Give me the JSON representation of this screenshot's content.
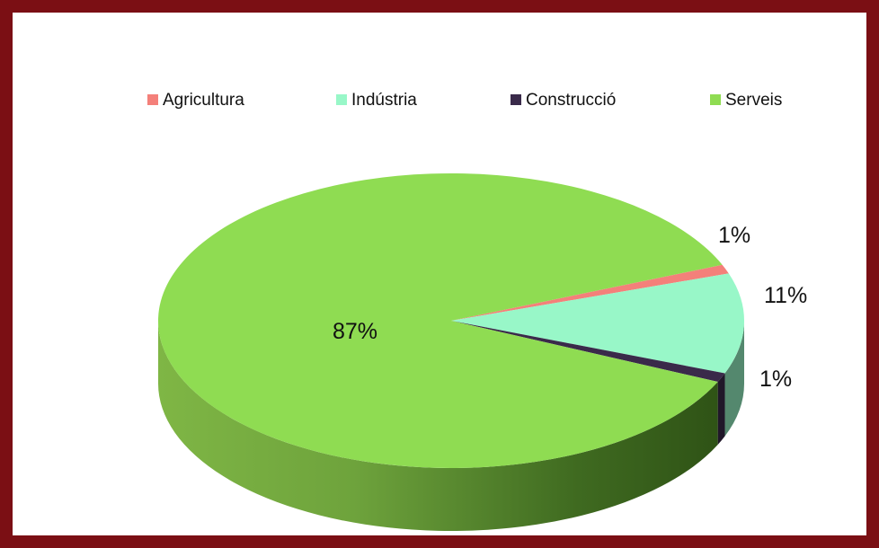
{
  "chart_data": {
    "type": "pie",
    "style": "3d",
    "title": "",
    "legend_position": "top",
    "slices": [
      {
        "name": "Agricultura",
        "value": 1,
        "label": "1%",
        "color": "#f4807a"
      },
      {
        "name": "Indústria",
        "value": 11,
        "label": "11%",
        "color": "#98f7c8"
      },
      {
        "name": "Construcció",
        "value": 1,
        "label": "1%",
        "color": "#3a2a4a"
      },
      {
        "name": "Serveis",
        "value": 87,
        "label": "87%",
        "color": "#8fdc52"
      }
    ]
  },
  "border_color": "#7b0f14"
}
